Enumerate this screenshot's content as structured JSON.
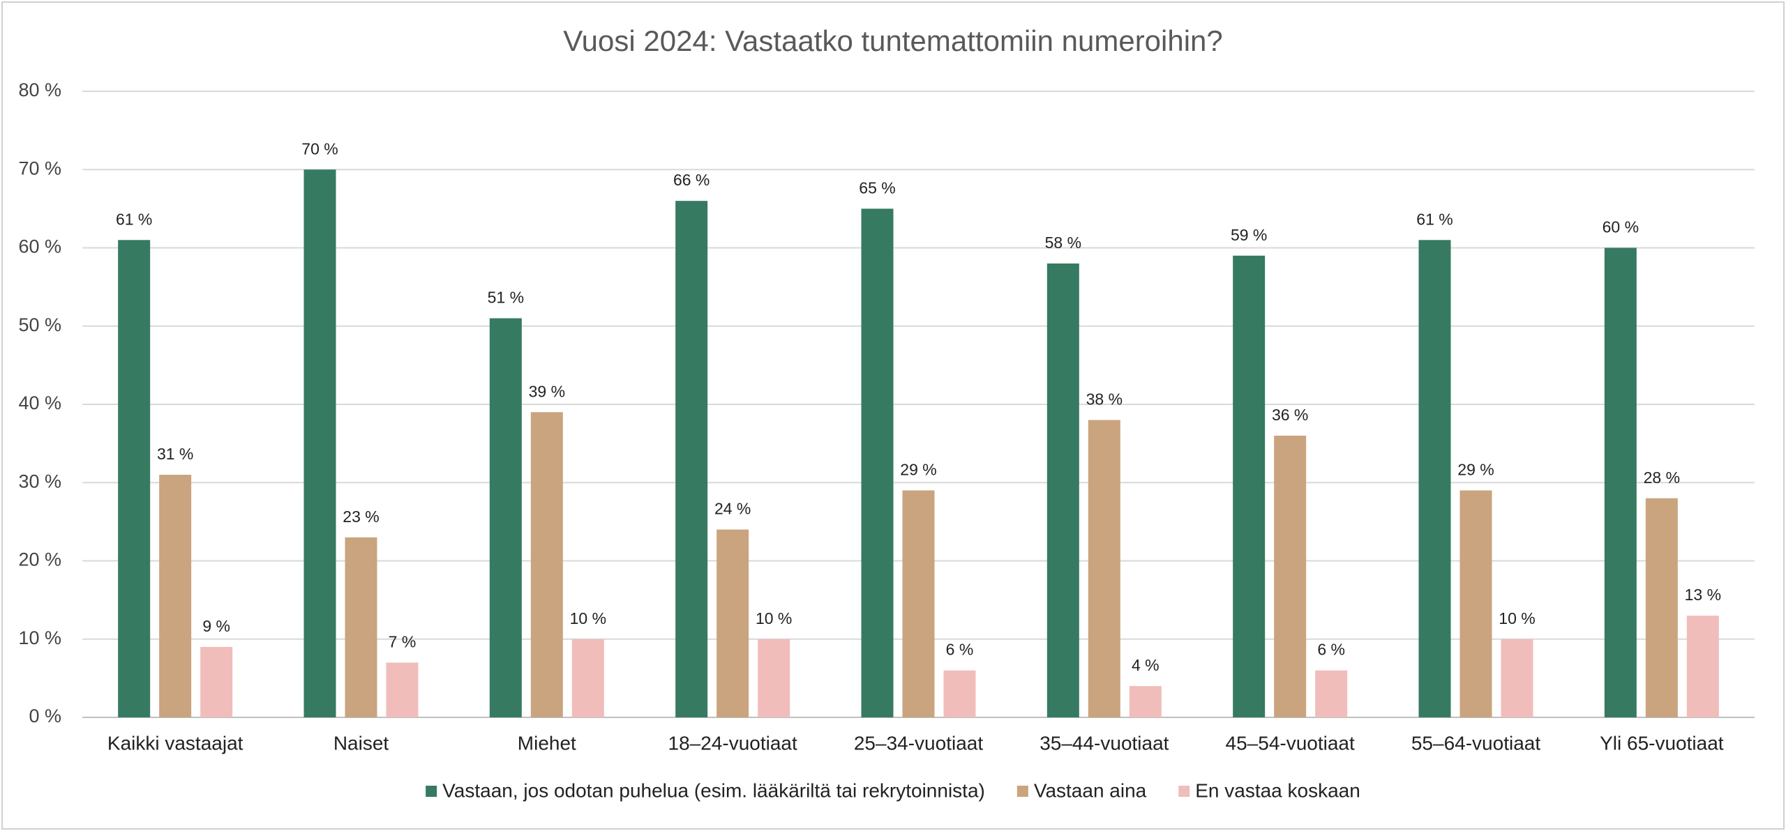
{
  "chart_data": {
    "type": "bar",
    "title": "Vuosi 2024: Vastaatko tuntemattomiin numeroihin?",
    "categories": [
      "Kaikki vastaajat",
      "Naiset",
      "Miehet",
      "18–24-vuotiaat",
      "25–34-vuotiaat",
      "35–44-vuotiaat",
      "45–54-vuotiaat",
      "55–64-vuotiaat",
      "Yli 65-vuotiaat"
    ],
    "series": [
      {
        "name": "Vastaan, jos odotan puhelua (esim. lääkäriltä tai rekrytoinnista)",
        "color": "#367a62",
        "values": [
          61,
          70,
          51,
          66,
          65,
          58,
          59,
          61,
          60
        ],
        "value_labels": [
          "61 %",
          "70 %",
          "51 %",
          "66 %",
          "65 %",
          "58 %",
          "59 %",
          "61 %",
          "60 %"
        ]
      },
      {
        "name": "Vastaan aina",
        "color": "#c9a47e",
        "values": [
          31,
          23,
          39,
          24,
          29,
          38,
          36,
          29,
          28
        ],
        "value_labels": [
          "31 %",
          "23 %",
          "39 %",
          "24 %",
          "29 %",
          "38 %",
          "36 %",
          "29 %",
          "28 %"
        ]
      },
      {
        "name": "En vastaa koskaan",
        "color": "#f0bdbb",
        "values": [
          9,
          7,
          10,
          10,
          6,
          4,
          6,
          10,
          13
        ],
        "value_labels": [
          "9 %",
          "7 %",
          "10 %",
          "10 %",
          "6 %",
          "4 %",
          "6 %",
          "10 %",
          "13 %"
        ]
      }
    ],
    "ylim": [
      0,
      80
    ],
    "yticks": [
      {
        "value": 0,
        "label": "0 %"
      },
      {
        "value": 10,
        "label": "10 %"
      },
      {
        "value": 20,
        "label": "20 %"
      },
      {
        "value": 30,
        "label": "30 %"
      },
      {
        "value": 40,
        "label": "40 %"
      },
      {
        "value": 50,
        "label": "50 %"
      },
      {
        "value": 60,
        "label": "60 %"
      },
      {
        "value": 70,
        "label": "70 %"
      },
      {
        "value": 80,
        "label": "80 %"
      }
    ],
    "grid": true,
    "legend": "bottom"
  }
}
